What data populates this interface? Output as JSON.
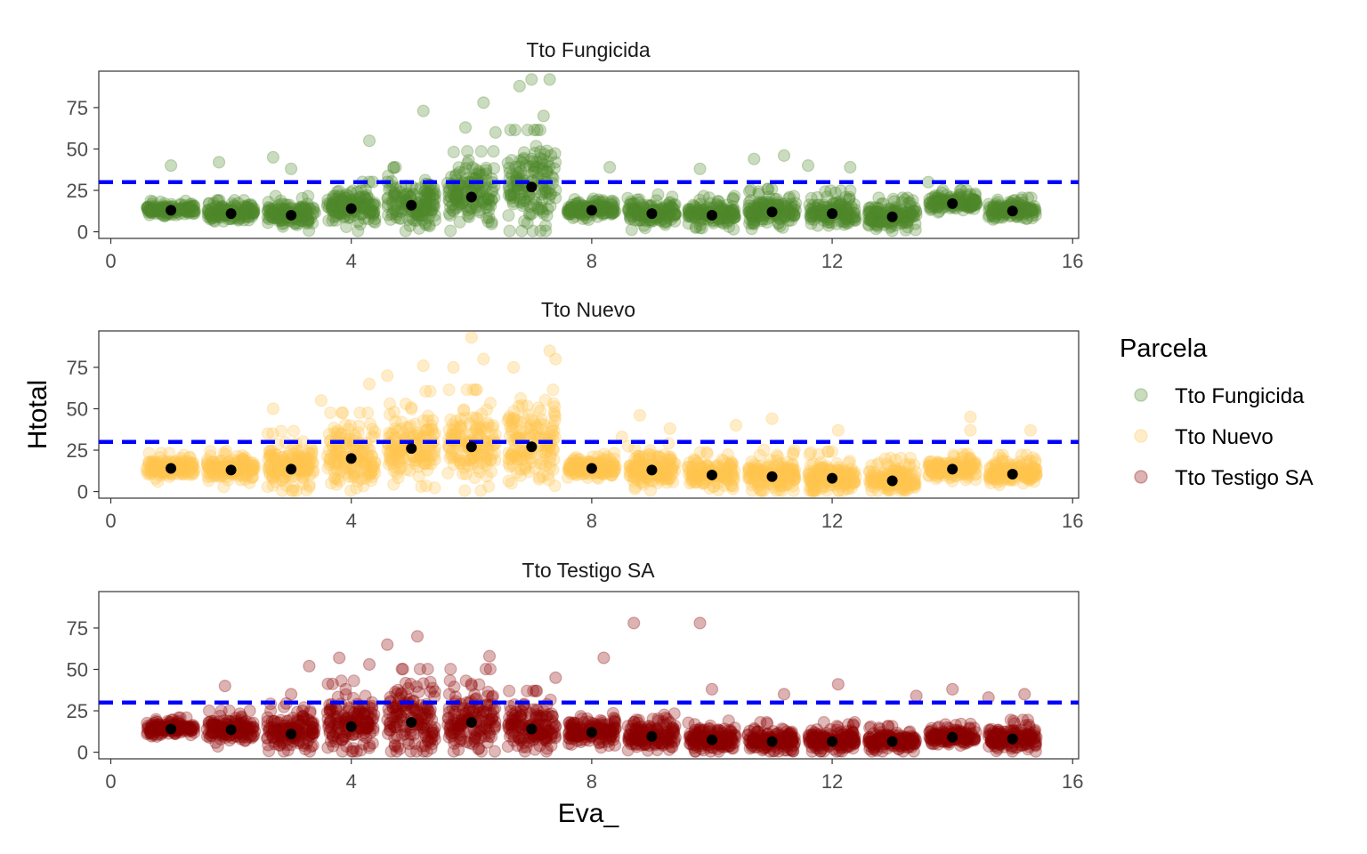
{
  "chart_data": {
    "type": "scatter",
    "xlabel": "Eva_",
    "ylabel": "Htotal",
    "xlim": [
      -0.2,
      16.1
    ],
    "ylim": [
      -4,
      97
    ],
    "x_ticks": [
      0,
      4,
      8,
      12,
      16
    ],
    "y_ticks": [
      0,
      25,
      50,
      75
    ],
    "reference_line": {
      "y": 30,
      "color": "#0000ff",
      "style": "dashed"
    },
    "mean_marker_color": "#000000",
    "grid": false,
    "legend": {
      "title": "Parcela",
      "placement": "right",
      "entries": [
        "Tto Fungicida",
        "Tto Nuevo",
        "Tto Testigo SA"
      ]
    },
    "panels": [
      {
        "name": "Tto Fungicida",
        "color": "#4f8a2b",
        "x": [
          1,
          2,
          3,
          4,
          5,
          6,
          7,
          8,
          9,
          10,
          11,
          12,
          13,
          14,
          15
        ],
        "mean": [
          13,
          11,
          10,
          14,
          16,
          21,
          27,
          13,
          11,
          10,
          12,
          11,
          9,
          17,
          12.5
        ],
        "spread_sd": [
          2.5,
          3.5,
          5,
          7,
          10,
          12,
          15,
          3,
          5,
          5,
          6,
          6,
          5,
          3.5,
          3.5
        ],
        "outliers": [
          [
            1.0,
            40
          ],
          [
            1.8,
            42
          ],
          [
            2.7,
            45
          ],
          [
            3.0,
            38
          ],
          [
            4.3,
            55
          ],
          [
            5.2,
            73
          ],
          [
            5.9,
            63
          ],
          [
            6.2,
            78
          ],
          [
            6.4,
            60
          ],
          [
            6.8,
            88
          ],
          [
            7.0,
            92
          ],
          [
            7.3,
            92
          ],
          [
            7.2,
            70
          ],
          [
            8.3,
            39
          ],
          [
            9.8,
            38
          ],
          [
            10.7,
            44
          ],
          [
            11.2,
            46
          ],
          [
            11.6,
            40
          ],
          [
            12.3,
            39
          ],
          [
            13.6,
            30
          ]
        ]
      },
      {
        "name": "Tto Nuevo",
        "color": "#ffc44f",
        "x": [
          1,
          2,
          3,
          4,
          5,
          6,
          7,
          8,
          9,
          10,
          11,
          12,
          13,
          14,
          15
        ],
        "mean": [
          14,
          13,
          13.5,
          20,
          26,
          27,
          27,
          14,
          13,
          10,
          9,
          8,
          6.5,
          13.5,
          10.5
        ],
        "spread_sd": [
          4,
          5,
          10,
          12,
          15,
          15,
          15,
          4,
          7,
          6,
          7,
          7,
          6,
          4,
          5
        ],
        "outliers": [
          [
            2.7,
            50
          ],
          [
            3.5,
            55
          ],
          [
            4.3,
            65
          ],
          [
            4.6,
            70
          ],
          [
            5.2,
            76
          ],
          [
            5.7,
            75
          ],
          [
            6.0,
            93
          ],
          [
            6.2,
            80
          ],
          [
            6.7,
            75
          ],
          [
            7.3,
            85
          ],
          [
            7.4,
            80
          ],
          [
            8.5,
            33
          ],
          [
            8.8,
            46
          ],
          [
            9.3,
            38
          ],
          [
            10.4,
            40
          ],
          [
            11.0,
            44
          ],
          [
            12.1,
            37
          ],
          [
            14.3,
            37
          ],
          [
            14.3,
            45
          ],
          [
            15.3,
            37
          ]
        ]
      },
      {
        "name": "Tto Testigo SA",
        "color": "#8b0000",
        "x": [
          1,
          2,
          3,
          4,
          5,
          6,
          7,
          8,
          9,
          10,
          11,
          12,
          13,
          14,
          15
        ],
        "mean": [
          14,
          13.5,
          11,
          15.5,
          18,
          18,
          14,
          12,
          9.5,
          7.5,
          6.5,
          6.5,
          6.5,
          9,
          8
        ],
        "spread_sd": [
          3,
          5,
          8,
          12,
          14,
          14,
          10,
          5,
          6,
          5,
          5,
          5,
          4,
          3.5,
          5
        ],
        "outliers": [
          [
            1.9,
            40
          ],
          [
            3.0,
            35
          ],
          [
            3.3,
            52
          ],
          [
            3.8,
            57
          ],
          [
            4.3,
            53
          ],
          [
            4.6,
            65
          ],
          [
            5.1,
            70
          ],
          [
            6.3,
            58
          ],
          [
            7.4,
            45
          ],
          [
            8.2,
            57
          ],
          [
            8.7,
            78
          ],
          [
            9.8,
            78
          ],
          [
            10.0,
            38
          ],
          [
            11.2,
            35
          ],
          [
            12.1,
            41
          ],
          [
            13.4,
            34
          ],
          [
            14.0,
            38
          ],
          [
            14.6,
            33
          ],
          [
            15.2,
            35
          ]
        ]
      }
    ]
  }
}
